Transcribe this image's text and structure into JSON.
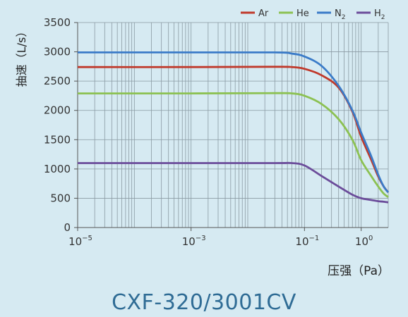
{
  "chart_data": {
    "type": "line",
    "title": "",
    "ylabel": "抽速（L/s）",
    "xlabel": "压强（Pa）",
    "xscale": "log",
    "xlim": [
      1e-05,
      3
    ],
    "ylim": [
      0,
      3500
    ],
    "yticks": [
      "0",
      "500",
      "1000",
      "1500",
      "2000",
      "2500",
      "3000",
      "3500"
    ],
    "xticks": [
      {
        "base": "10",
        "exp": "−5"
      },
      {
        "base": "10",
        "exp": "−3"
      },
      {
        "base": "10",
        "exp": "−1"
      },
      {
        "base": "10",
        "exp": "0"
      }
    ],
    "grid": "on",
    "legend_position": "top-right",
    "series": [
      {
        "name": "Ar",
        "subscript": "",
        "color": "#c0392b",
        "points": [
          [
            1e-05,
            2740
          ],
          [
            0.001,
            2740
          ],
          [
            0.03,
            2745
          ],
          [
            0.06,
            2740
          ],
          [
            0.1,
            2710
          ],
          [
            0.2,
            2600
          ],
          [
            0.4,
            2390
          ],
          [
            0.7,
            1980
          ],
          [
            1.0,
            1550
          ],
          [
            1.5,
            1160
          ],
          [
            2.0,
            870
          ],
          [
            2.5,
            700
          ],
          [
            3.0,
            600
          ]
        ]
      },
      {
        "name": "He",
        "subscript": "",
        "color": "#8cc152",
        "points": [
          [
            1e-05,
            2290
          ],
          [
            0.001,
            2290
          ],
          [
            0.03,
            2295
          ],
          [
            0.06,
            2290
          ],
          [
            0.1,
            2250
          ],
          [
            0.2,
            2110
          ],
          [
            0.4,
            1850
          ],
          [
            0.7,
            1500
          ],
          [
            1.0,
            1150
          ],
          [
            1.5,
            880
          ],
          [
            2.0,
            700
          ],
          [
            2.5,
            580
          ],
          [
            3.0,
            520
          ]
        ]
      },
      {
        "name": "N",
        "subscript": "2",
        "color": "#3a7bc8",
        "points": [
          [
            1e-05,
            2990
          ],
          [
            0.001,
            2990
          ],
          [
            0.03,
            2990
          ],
          [
            0.06,
            2970
          ],
          [
            0.1,
            2920
          ],
          [
            0.2,
            2760
          ],
          [
            0.4,
            2420
          ],
          [
            0.7,
            2000
          ],
          [
            1.0,
            1620
          ],
          [
            1.5,
            1220
          ],
          [
            2.0,
            900
          ],
          [
            2.5,
            700
          ],
          [
            3.0,
            600
          ]
        ]
      },
      {
        "name": "H",
        "subscript": "2",
        "color": "#6b4c9a",
        "points": [
          [
            1e-05,
            1100
          ],
          [
            0.001,
            1100
          ],
          [
            0.03,
            1100
          ],
          [
            0.06,
            1100
          ],
          [
            0.1,
            1060
          ],
          [
            0.2,
            880
          ],
          [
            0.4,
            700
          ],
          [
            0.7,
            560
          ],
          [
            1.0,
            500
          ],
          [
            1.5,
            470
          ],
          [
            2.0,
            450
          ],
          [
            2.5,
            440
          ],
          [
            3.0,
            430
          ]
        ]
      }
    ]
  },
  "model_name": "CXF-320/3001CV"
}
